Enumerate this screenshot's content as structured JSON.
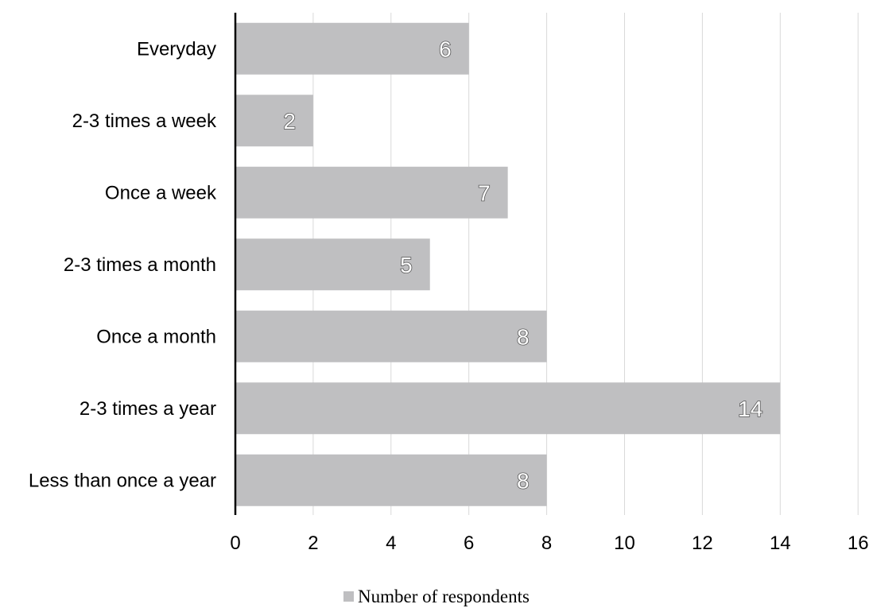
{
  "chart_data": {
    "type": "bar",
    "orientation": "horizontal",
    "categories": [
      "Everyday",
      "2-3 times a week",
      "Once a week",
      "2-3 times a month",
      "Once a month",
      "2-3 times a year",
      "Less than once a year"
    ],
    "series": [
      {
        "name": "Number of respondents",
        "values": [
          6,
          2,
          7,
          5,
          8,
          14,
          8
        ],
        "color": "#bfbfc1"
      }
    ],
    "xlim": [
      0,
      16
    ],
    "xticks": [
      0,
      2,
      4,
      6,
      8,
      10,
      12,
      14,
      16
    ],
    "data_labels": true,
    "grid": "vertical",
    "legend_position": "bottom"
  }
}
